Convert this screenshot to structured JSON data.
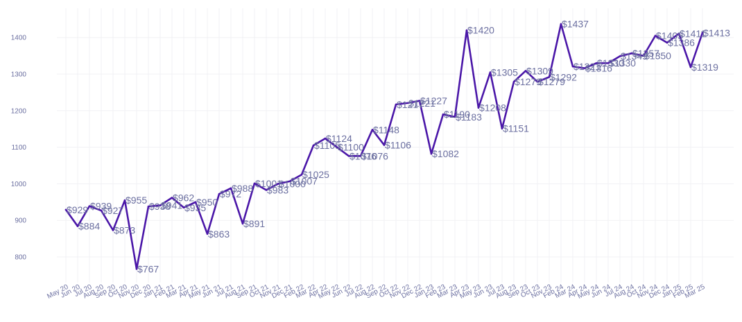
{
  "chart_data": {
    "type": "line",
    "title": "",
    "xlabel": "",
    "ylabel": "",
    "ylim": [
      730,
      1480
    ],
    "yticks": [
      800,
      900,
      1000,
      1100,
      1200,
      1300,
      1400
    ],
    "grid": true,
    "legend": "none",
    "colors": {
      "line": "#4a16a8",
      "text": "#6b6fa0",
      "grid": "#f1f1f4"
    },
    "label_prefix": "$",
    "categories": [
      "May 20",
      "Jun 20",
      "Jul 20",
      "Aug 20",
      "Sep 20",
      "Oct 20",
      "Nov 20",
      "Dec 20",
      "Jan 21",
      "Feb 21",
      "Mar 21",
      "Apr 21",
      "May 21",
      "Jun 21",
      "Jul 21",
      "Aug 21",
      "Sep 21",
      "Oct 21",
      "Nov 21",
      "Dec 21",
      "Feb 22",
      "Mar 22",
      "Apr 22",
      "May 22",
      "Jun 22",
      "Jul 22",
      "Aug 22",
      "Sep 22",
      "Oct 22",
      "Nov 22",
      "Dec 22",
      "Jan 23",
      "Feb 23",
      "Mar 23",
      "Apr 23",
      "May 23",
      "Jun 23",
      "Jul 23",
      "Aug 23",
      "Sep 23",
      "Oct 23",
      "Nov 23",
      "Feb 24",
      "Mar 24",
      "Apr 24",
      "May 24",
      "Jun 24",
      "Jul 24",
      "Aug 24",
      "Oct 24",
      "Nov 24",
      "Dec 24",
      "Jan 25",
      "Feb 25",
      "Mar 25"
    ],
    "series": [
      {
        "name": "Price",
        "values": [
          929,
          884,
          939,
          927,
          873,
          955,
          767,
          938,
          941,
          962,
          935,
          950,
          863,
          972,
          988,
          891,
          1001,
          983,
          1000,
          1007,
          1025,
          1105,
          1124,
          1100,
          1076,
          1076,
          1148,
          1106,
          1217,
          1221,
          1227,
          1082,
          1190,
          1183,
          1420,
          1208,
          1305,
          1151,
          1279,
          1309,
          1279,
          1292,
          1437,
          1321,
          1316,
          1330,
          1330,
          1349,
          1357,
          1350,
          1405,
          1386,
          1411,
          1319,
          1413
        ],
        "labels": [
          "$929",
          "$884",
          "$939",
          "$927",
          "$873",
          "$955",
          "$767",
          "$938",
          "$941",
          "$962",
          "$935",
          "$950",
          "$863",
          "$972",
          "$988",
          "$891",
          "$1001",
          "$983",
          "$1000",
          "$1007",
          "$1025",
          "$1105",
          "$1124",
          "$1100",
          "$1076",
          "$1076",
          "$1148",
          "$1106",
          "$1217",
          "$1221",
          "$1227",
          "$1082",
          "$1190",
          "$1183",
          "$1420",
          "$1208",
          "$1305",
          "$1151",
          "$1279",
          "$1309",
          "$1279",
          "$1292",
          "$1437",
          "$1321",
          "$1316",
          "$1330",
          "$1330",
          "$1349",
          "$1357",
          "$1350",
          "$1405",
          "$1386",
          "$1411",
          "$1319",
          "$1413"
        ]
      }
    ]
  }
}
